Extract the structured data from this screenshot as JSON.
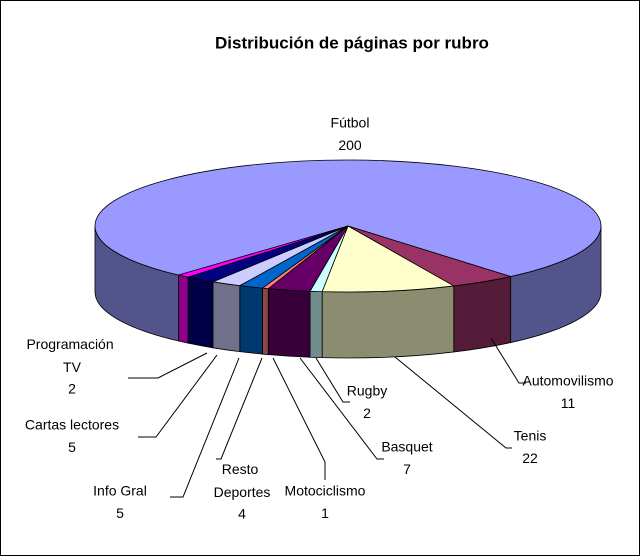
{
  "chart_data": {
    "type": "pie",
    "title": "Distribución de páginas por rubro",
    "categories": [
      "Fútbol",
      "Automovilismo",
      "Tenis",
      "Rugby",
      "Basquet",
      "Motociclismo",
      "Resto Deportes",
      "Info Gral",
      "Cartas lectores",
      "Programación TV"
    ],
    "values": [
      200,
      11,
      22,
      2,
      7,
      1,
      4,
      5,
      5,
      2
    ],
    "colors": [
      "#9999ff",
      "#993366",
      "#ffffcc",
      "#ccffff",
      "#660066",
      "#ff8080",
      "#0066cc",
      "#ccccff",
      "#000080",
      "#ff00ff"
    ]
  }
}
